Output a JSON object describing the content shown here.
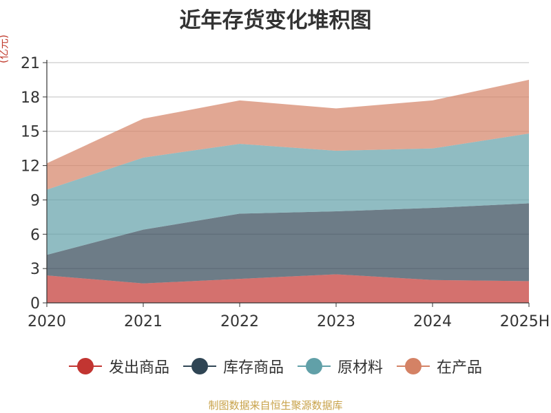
{
  "chart_data": {
    "type": "area",
    "stacked": true,
    "title": "近年存货变化堆积图",
    "unit_label": "(亿元)",
    "x": [
      "2020",
      "2021",
      "2022",
      "2023",
      "2024",
      "2025H"
    ],
    "ylim": [
      0,
      21
    ],
    "yticks": [
      "0",
      "3",
      "6",
      "9",
      "12",
      "15",
      "18",
      "21"
    ],
    "grid": true,
    "legend_position": "bottom",
    "series": [
      {
        "name": "发出商品",
        "color": "#c23531",
        "values": [
          2.4,
          1.7,
          2.1,
          2.5,
          2.0,
          1.9
        ]
      },
      {
        "name": "库存商品",
        "color": "#2f4554",
        "values": [
          1.8,
          4.7,
          5.7,
          5.5,
          6.3,
          6.8
        ]
      },
      {
        "name": "原材料",
        "color": "#61a0a8",
        "values": [
          5.7,
          6.3,
          6.1,
          5.3,
          5.2,
          6.1
        ]
      },
      {
        "name": "在产品",
        "color": "#d48265",
        "values": [
          2.3,
          3.4,
          3.8,
          3.7,
          4.2,
          4.7
        ]
      }
    ]
  },
  "source_note": "制图数据来自恒生聚源数据库"
}
